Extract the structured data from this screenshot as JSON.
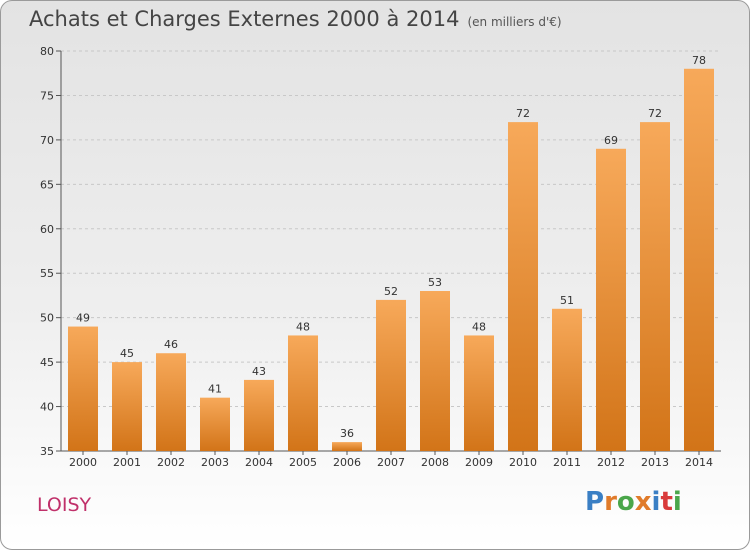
{
  "header": {
    "title": "Achats et Charges Externes 2000 à 2014",
    "subtitle": "(en milliers d'€)"
  },
  "commune": "LOISY",
  "logo": {
    "text": "Proxiti",
    "colors": [
      "#3a7fc4",
      "#e07b2a",
      "#4aa64a",
      "#e07b2a",
      "#3a7fc4",
      "#d93a3a",
      "#4aa64a"
    ]
  },
  "colors": {
    "bar_top": "#f7a95a",
    "bar_bottom": "#d27418",
    "grid": "#c8c8c8"
  },
  "chart_data": {
    "type": "bar",
    "categories": [
      "2000",
      "2001",
      "2002",
      "2003",
      "2004",
      "2005",
      "2006",
      "2007",
      "2008",
      "2009",
      "2010",
      "2011",
      "2012",
      "2013",
      "2014"
    ],
    "values": [
      49,
      45,
      46,
      41,
      43,
      48,
      36,
      52,
      53,
      48,
      72,
      51,
      69,
      72,
      78
    ],
    "ylim": [
      35,
      80
    ],
    "yticks": [
      35,
      40,
      45,
      50,
      55,
      60,
      65,
      70,
      75,
      80
    ],
    "grid": true
  }
}
